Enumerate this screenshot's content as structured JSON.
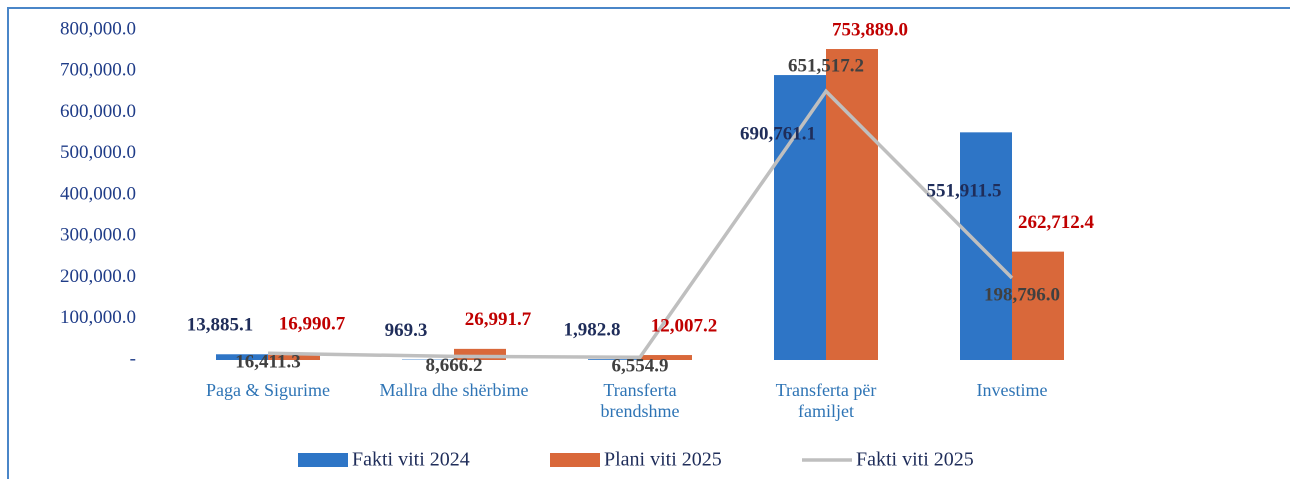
{
  "chart_data": {
    "type": "bar",
    "categories": [
      "Paga & Sigurime",
      "Mallra dhe shërbime",
      "Transferta brendshme",
      "Transferta për familjet",
      "Investime"
    ],
    "series": [
      {
        "name": "Fakti viti 2024",
        "type": "bar",
        "color": "#2e75c6",
        "values": [
          13885.1,
          969.3,
          1982.8,
          690761.1,
          551911.5
        ],
        "value_labels": [
          "13,885.1",
          "969.3",
          "1,982.8",
          "690,761.1",
          "551,911.5"
        ]
      },
      {
        "name": "Plani viti 2025",
        "type": "bar",
        "color": "#d9683a",
        "values": [
          16990.7,
          26991.7,
          12007.2,
          753889.0,
          262712.4
        ],
        "value_labels": [
          "16,990.7",
          "26,991.7",
          "12,007.2",
          "753,889.0",
          "262,712.4"
        ]
      },
      {
        "name": "Fakti viti 2025",
        "type": "line",
        "color": "#bfbfbf",
        "values": [
          16411.3,
          8666.2,
          6554.9,
          651517.2,
          198796.0
        ],
        "value_labels": [
          "16,411.3",
          "8,666.2",
          "6,554.9",
          "651,517.2",
          "198,796.0"
        ]
      }
    ],
    "ylim": [
      0,
      800000
    ],
    "yticks": [
      {
        "value": 0,
        "label": "-"
      },
      {
        "value": 100000,
        "label": "100,000.0"
      },
      {
        "value": 200000,
        "label": "200,000.0"
      },
      {
        "value": 300000,
        "label": "300,000.0"
      },
      {
        "value": 400000,
        "label": "400,000.0"
      },
      {
        "value": 500000,
        "label": "500,000.0"
      },
      {
        "value": 600000,
        "label": "600,000.0"
      },
      {
        "value": 700000,
        "label": "700,000.0"
      },
      {
        "value": 800000,
        "label": "800,000.0"
      }
    ],
    "legend": "bottom"
  }
}
